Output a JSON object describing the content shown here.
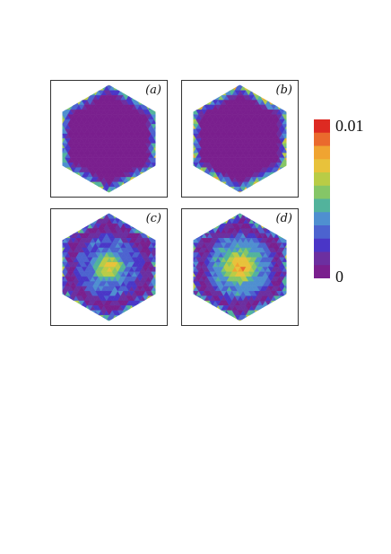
{
  "panels": [
    {
      "label": "(a)",
      "pattern": "edge-ring-weak"
    },
    {
      "label": "(b)",
      "pattern": "edge-ring"
    },
    {
      "label": "(c)",
      "pattern": "center-hotspot-with-edges"
    },
    {
      "label": "(d)",
      "pattern": "center-hotspot-with-edges-strong"
    }
  ],
  "colorbar": {
    "max_label": "0.01",
    "min_label": "0",
    "colors": [
      "#dd2a22",
      "#ea6a2d",
      "#f0a431",
      "#e8c23b",
      "#b9cc46",
      "#85c667",
      "#52b39c",
      "#4f8fd0",
      "#4c63cf",
      "#4a36c7",
      "#6c2fa0",
      "#7a1f8e"
    ]
  }
}
